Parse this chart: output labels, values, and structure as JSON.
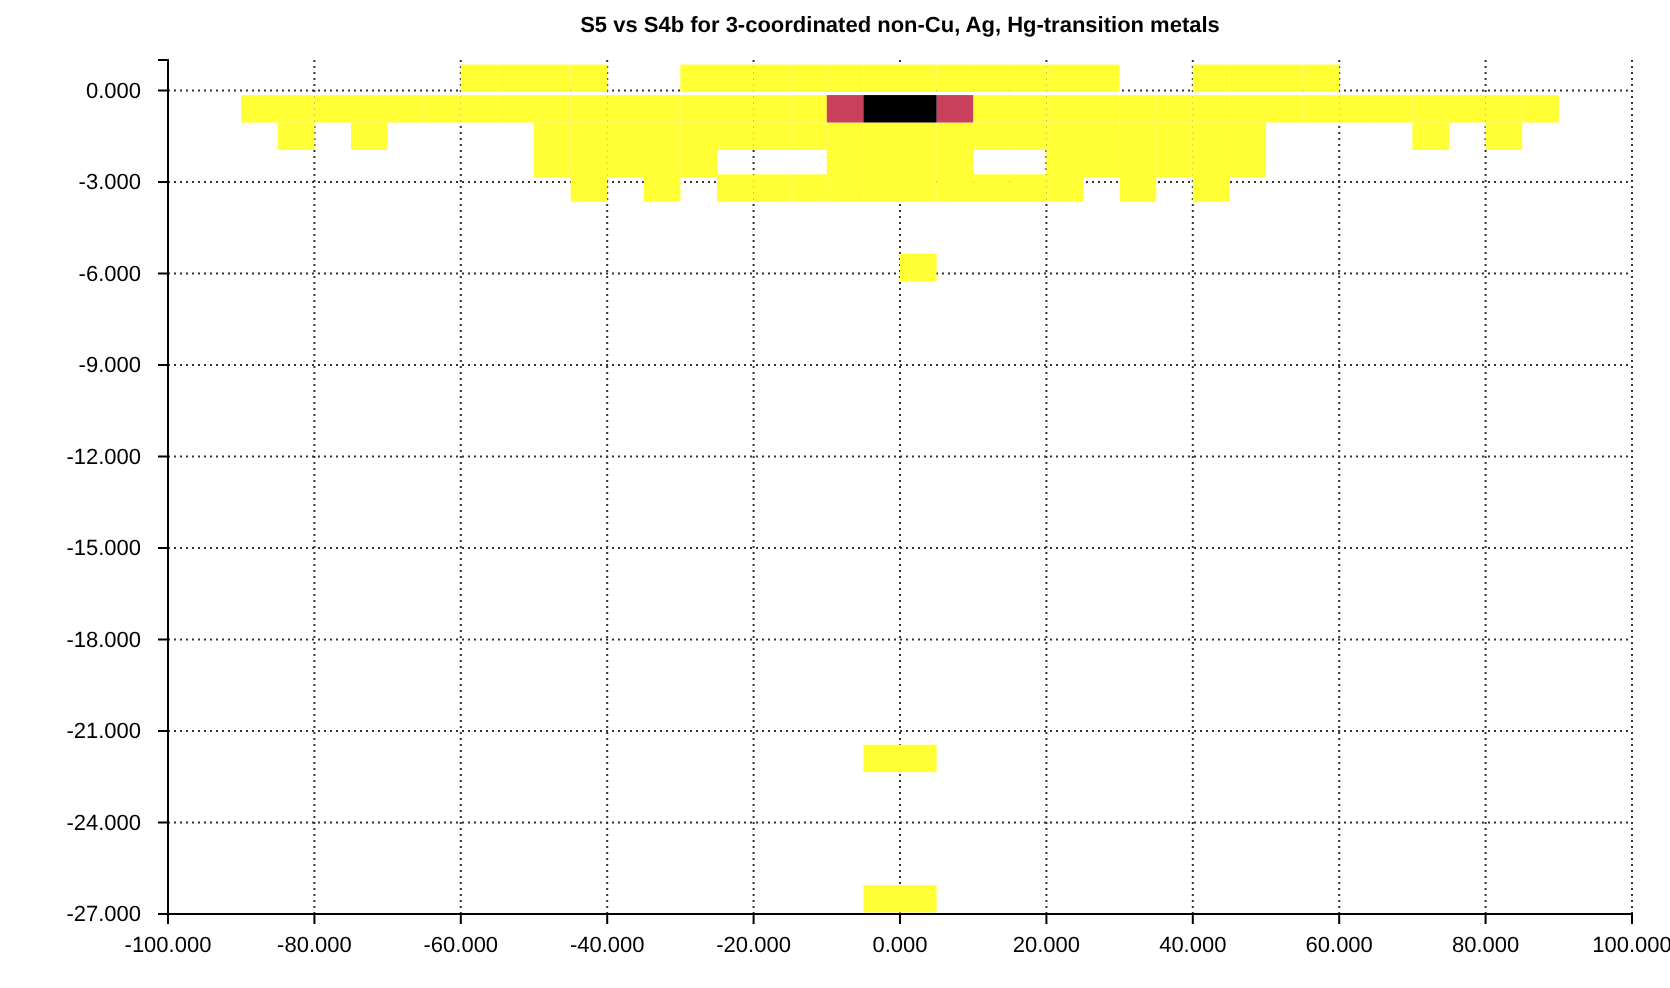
{
  "chart_data": {
    "type": "scatter",
    "title": "S5 vs S4b for 3-coordinated non-Cu, Ag, Hg-transition metals",
    "marker": "square",
    "grid": true,
    "xlim": [
      -100,
      100
    ],
    "xticks": [
      {
        "value": -100,
        "label": "-100.000"
      },
      {
        "value": -80,
        "label": "-80.000"
      },
      {
        "value": -60,
        "label": "-60.000"
      },
      {
        "value": -40,
        "label": "-40.000"
      },
      {
        "value": -20,
        "label": "-20.000"
      },
      {
        "value": 0,
        "label": "0.000"
      },
      {
        "value": 20,
        "label": "20.000"
      },
      {
        "value": 40,
        "label": "40.000"
      },
      {
        "value": 60,
        "label": "60.000"
      },
      {
        "value": 80,
        "label": "80.000"
      },
      {
        "value": 100,
        "label": "100.000"
      }
    ],
    "ylim": [
      -27,
      1
    ],
    "yticks": [
      {
        "value": 0,
        "label": "0.000"
      },
      {
        "value": -3,
        "label": "-3.000"
      },
      {
        "value": -6,
        "label": "-6.000"
      },
      {
        "value": -9,
        "label": "-9.000"
      },
      {
        "value": -12,
        "label": "-12.000"
      },
      {
        "value": -15,
        "label": "-15.000"
      },
      {
        "value": -18,
        "label": "-18.000"
      },
      {
        "value": -21,
        "label": "-21.000"
      },
      {
        "value": -24,
        "label": "-24.000"
      },
      {
        "value": -27,
        "label": "-27.000"
      }
    ],
    "series": [
      {
        "color": "#ffff33",
        "x": [
          -57.5,
          -52.5,
          -47.5,
          -42.5,
          -27.5,
          -22.5,
          -17.5,
          -12.5,
          -7.5,
          -2.5,
          2.5,
          7.5,
          12.5,
          17.5,
          22.5,
          27.5,
          42.5,
          47.5,
          52.5,
          57.5,
          -87.5,
          -82.5,
          -77.5,
          -72.5,
          -67.5,
          -62.5,
          -57.5,
          -52.5,
          -47.5,
          -42.5,
          -37.5,
          -32.5,
          -27.5,
          -22.5,
          -17.5,
          -12.5,
          12.5,
          17.5,
          22.5,
          27.5,
          32.5,
          37.5,
          42.5,
          47.5,
          52.5,
          57.5,
          62.5,
          67.5,
          72.5,
          77.5,
          82.5,
          87.5,
          -82.5,
          -72.5,
          -47.5,
          -42.5,
          -37.5,
          -32.5,
          -27.5,
          -22.5,
          -17.5,
          -12.5,
          -7.5,
          -2.5,
          2.5,
          7.5,
          12.5,
          17.5,
          22.5,
          27.5,
          32.5,
          37.5,
          42.5,
          47.5,
          72.5,
          82.5,
          -47.5,
          -42.5,
          -37.5,
          -32.5,
          -27.5,
          -7.5,
          -2.5,
          2.5,
          7.5,
          22.5,
          27.5,
          32.5,
          37.5,
          42.5,
          47.5,
          -42.5,
          -32.5,
          -22.5,
          -17.5,
          -12.5,
          -7.5,
          -2.5,
          2.5,
          7.5,
          12.5,
          17.5,
          22.5,
          32.5,
          42.5,
          2.5,
          -2.5,
          2.5,
          -2.5,
          2.5
        ],
        "values": [
          0.4,
          0.4,
          0.4,
          0.4,
          0.4,
          0.4,
          0.4,
          0.4,
          0.4,
          0.4,
          0.4,
          0.4,
          0.4,
          0.4,
          0.4,
          0.4,
          0.4,
          0.4,
          0.4,
          0.4,
          -0.6,
          -0.6,
          -0.6,
          -0.6,
          -0.6,
          -0.6,
          -0.6,
          -0.6,
          -0.6,
          -0.6,
          -0.6,
          -0.6,
          -0.6,
          -0.6,
          -0.6,
          -0.6,
          -0.6,
          -0.6,
          -0.6,
          -0.6,
          -0.6,
          -0.6,
          -0.6,
          -0.6,
          -0.6,
          -0.6,
          -0.6,
          -0.6,
          -0.6,
          -0.6,
          -0.6,
          -0.6,
          -1.5,
          -1.5,
          -1.5,
          -1.5,
          -1.5,
          -1.5,
          -1.5,
          -1.5,
          -1.5,
          -1.5,
          -1.5,
          -1.5,
          -1.5,
          -1.5,
          -1.5,
          -1.5,
          -1.5,
          -1.5,
          -1.5,
          -1.5,
          -1.5,
          -1.5,
          -1.5,
          -1.5,
          -2.4,
          -2.4,
          -2.4,
          -2.4,
          -2.4,
          -2.4,
          -2.4,
          -2.4,
          -2.4,
          -2.4,
          -2.4,
          -2.4,
          -2.4,
          -2.4,
          -2.4,
          -3.2,
          -3.2,
          -3.2,
          -3.2,
          -3.2,
          -3.2,
          -3.2,
          -3.2,
          -3.2,
          -3.2,
          -3.2,
          -3.2,
          -3.2,
          -3.2,
          -5.8,
          -21.9,
          -21.9,
          -26.5,
          -26.5
        ]
      },
      {
        "color": "#c8405a",
        "x": [
          -7.5,
          7.5
        ],
        "values": [
          -0.6,
          -0.6
        ]
      },
      {
        "color": "#000000",
        "x": [
          -2.5,
          2.5
        ],
        "values": [
          -0.6,
          -0.6
        ]
      }
    ]
  }
}
